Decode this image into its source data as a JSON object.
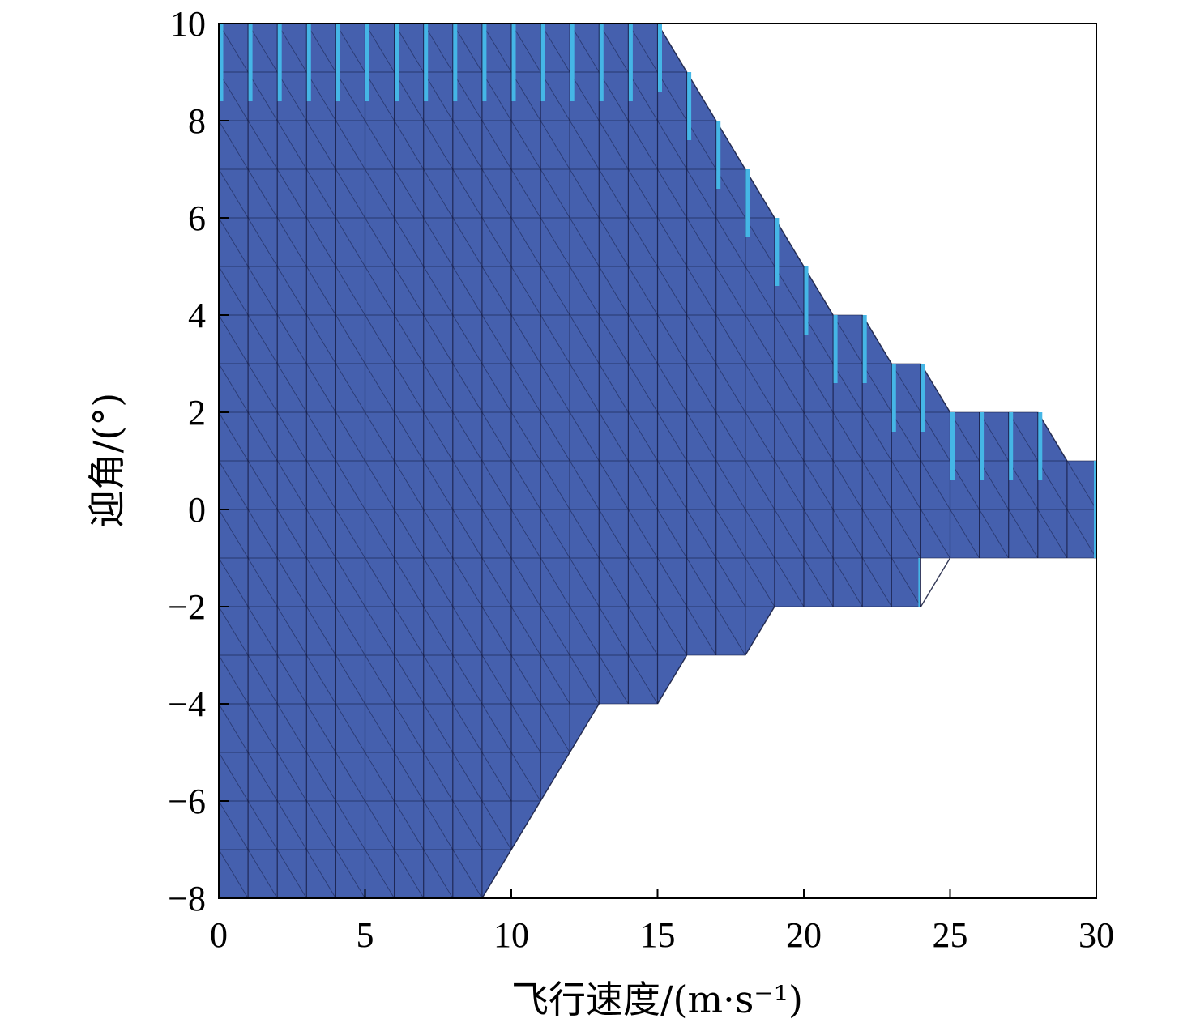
{
  "chart_data": {
    "type": "area",
    "xlabel": "飞行速度/(m·s⁻¹)",
    "ylabel": "迎角/(°)",
    "xlim": [
      0,
      30
    ],
    "ylim": [
      -8,
      10
    ],
    "xticks": [
      0,
      5,
      10,
      15,
      20,
      25,
      30
    ],
    "yticks": [
      -8,
      -6,
      -4,
      -2,
      0,
      2,
      4,
      6,
      8,
      10
    ],
    "grid": false,
    "colors": {
      "fill": "#4560ae",
      "edge": "#11163a",
      "highlight": "#45b6e6",
      "frame": "#000000"
    },
    "upper_boundary": [
      [
        0,
        10
      ],
      [
        15,
        10
      ],
      [
        16,
        9
      ],
      [
        17,
        8
      ],
      [
        18,
        7
      ],
      [
        19,
        6
      ],
      [
        20,
        5
      ],
      [
        21,
        4
      ],
      [
        22,
        4
      ],
      [
        23,
        3
      ],
      [
        24,
        3
      ],
      [
        25,
        2
      ],
      [
        28,
        2
      ],
      [
        29,
        1
      ],
      [
        30,
        1
      ]
    ],
    "lower_boundary": [
      [
        0,
        -8
      ],
      [
        9,
        -8
      ],
      [
        10,
        -7
      ],
      [
        11,
        -6
      ],
      [
        12,
        -5
      ],
      [
        13,
        -4
      ],
      [
        15,
        -4
      ],
      [
        16,
        -3
      ],
      [
        18,
        -3
      ],
      [
        19,
        -2
      ],
      [
        24,
        -2
      ],
      [
        24,
        -1
      ],
      [
        30,
        -1
      ]
    ],
    "highlight_x": [
      0,
      1,
      2,
      3,
      4,
      5,
      6,
      7,
      8,
      9,
      10,
      11,
      12,
      13,
      14,
      15,
      16,
      17,
      18,
      19,
      20,
      21,
      22,
      23,
      24,
      25,
      26,
      27,
      28
    ]
  }
}
